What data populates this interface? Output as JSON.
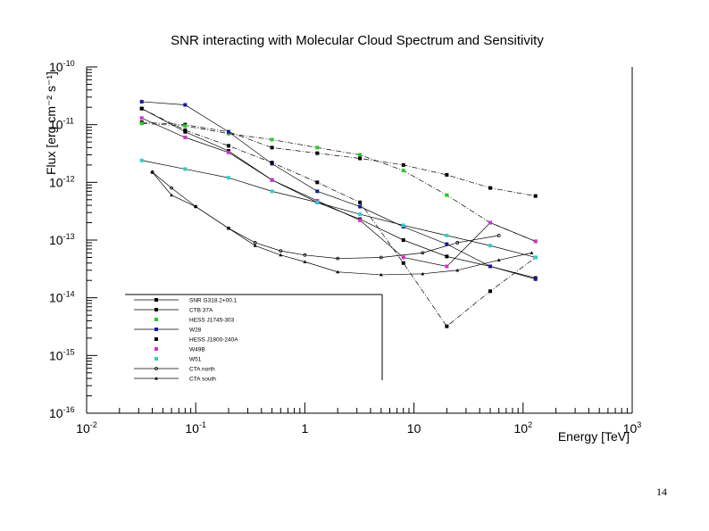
{
  "page_number": "14",
  "chart_data": {
    "type": "line",
    "title": "SNR interacting with Molecular Cloud Spectrum and Sensitivity",
    "xlabel": "Energy [TeV]",
    "ylabel": "Flux [erg cm⁻² s⁻¹]",
    "x_scale": "log",
    "y_scale": "log",
    "xlim": [
      0.01,
      1000
    ],
    "ylim": [
      1e-16,
      1e-10
    ],
    "x_ticks": [
      {
        "value": 0.01,
        "base": "10",
        "exp": "-2"
      },
      {
        "value": 0.1,
        "base": "10",
        "exp": "-1"
      },
      {
        "value": 1,
        "base": "1",
        "exp": ""
      },
      {
        "value": 10,
        "base": "10",
        "exp": ""
      },
      {
        "value": 100,
        "base": "10",
        "exp": "2"
      },
      {
        "value": 1000,
        "base": "10",
        "exp": "3"
      }
    ],
    "y_ticks": [
      {
        "value": 1e-10,
        "base": "10",
        "exp": "-10"
      },
      {
        "value": 1e-11,
        "base": "10",
        "exp": "-11"
      },
      {
        "value": 1e-12,
        "base": "10",
        "exp": "-12"
      },
      {
        "value": 1e-13,
        "base": "10",
        "exp": "-13"
      },
      {
        "value": 1e-14,
        "base": "10",
        "exp": "-14"
      },
      {
        "value": 1e-15,
        "base": "10",
        "exp": "-15"
      },
      {
        "value": 1e-16,
        "base": "10",
        "exp": "-16"
      }
    ],
    "grid": false,
    "legend_position": "bottom-left",
    "series": [
      {
        "name": "SNR G318.2+00.1",
        "color": "#000000",
        "marker": "square",
        "line": "dashdot",
        "x": [
          0.032,
          0.08,
          0.2,
          0.5,
          1.3,
          3.2,
          8,
          20,
          50,
          130
        ],
        "y": [
          1.1e-11,
          1e-11,
          7.5e-12,
          4e-12,
          3.2e-12,
          2.6e-12,
          2e-12,
          1.35e-12,
          8e-13,
          5.8e-13
        ]
      },
      {
        "name": "CTB 37A",
        "color": "#000000",
        "marker": "square",
        "line": "solid",
        "x": [
          0.032,
          0.08,
          0.2,
          0.5,
          1.3,
          3.2,
          8,
          20,
          50,
          130
        ],
        "y": [
          1.9e-11,
          7.5e-12,
          3.5e-12,
          1.1e-12,
          4.5e-13,
          2.3e-13,
          1e-13,
          5.2e-14,
          3.5e-14,
          2.2e-14
        ]
      },
      {
        "name": "HESS J1745-303",
        "color": "#22cc22",
        "marker": "square",
        "line": "dashdot",
        "x": [
          0.032,
          0.08,
          0.2,
          0.5,
          1.3,
          3.2,
          8,
          20,
          50,
          130
        ],
        "y": [
          1.05e-11,
          9.5e-12,
          7e-12,
          5.5e-12,
          4e-12,
          3e-12,
          1.6e-12,
          6e-13,
          2e-13,
          9.5e-14
        ]
      },
      {
        "name": "W28",
        "color": "#1a1a99",
        "marker": "square",
        "line": "solid",
        "x": [
          0.032,
          0.08,
          0.2,
          0.5,
          1.3,
          3.2,
          8,
          20,
          50,
          130
        ],
        "y": [
          2.5e-11,
          2.2e-11,
          7.5e-12,
          2.1e-12,
          7e-13,
          3.8e-13,
          1.7e-13,
          8.5e-14,
          3.5e-14,
          2.1e-14
        ]
      },
      {
        "name": "HESS J1800-240A",
        "color": "#000000",
        "marker": "square",
        "line": "dashdot",
        "x": [
          0.032,
          0.08,
          0.2,
          0.5,
          1.3,
          3.2,
          8,
          20,
          50,
          130
        ],
        "y": [
          1.9e-11,
          8e-12,
          4.3e-12,
          2.2e-12,
          1e-12,
          4.5e-13,
          4e-14,
          3.2e-15,
          1.3e-14,
          5e-14
        ]
      },
      {
        "name": "W49B",
        "color": "#cc33cc",
        "marker": "square",
        "line": "solid",
        "x": [
          0.032,
          0.08,
          0.2,
          0.5,
          1.3,
          3.2,
          8,
          20,
          50,
          130
        ],
        "y": [
          1.3e-11,
          6e-12,
          3.3e-12,
          1.1e-12,
          4.8e-13,
          2.2e-13,
          5e-14,
          3.5e-14,
          2e-13,
          9.5e-14
        ]
      },
      {
        "name": "W51",
        "color": "#33cccc",
        "marker": "square",
        "line": "solid",
        "x": [
          0.032,
          0.08,
          0.2,
          0.5,
          1.3,
          3.2,
          8,
          20,
          50,
          130
        ],
        "y": [
          2.4e-12,
          1.7e-12,
          1.2e-12,
          7e-13,
          4.5e-13,
          2.8e-13,
          1.8e-13,
          1.2e-13,
          8e-14,
          5e-14
        ]
      },
      {
        "name": "CTA north",
        "color": "#000000",
        "marker": "circle",
        "line": "solid",
        "x": [
          0.04,
          0.06,
          0.1,
          0.2,
          0.35,
          0.6,
          1,
          2,
          5,
          12,
          25,
          60
        ],
        "y": [
          1.5e-12,
          8e-13,
          3.8e-13,
          1.6e-13,
          9e-14,
          6.5e-14,
          5.5e-14,
          4.8e-14,
          5e-14,
          6e-14,
          9e-14,
          1.2e-13
        ]
      },
      {
        "name": "CTA south",
        "color": "#000000",
        "marker": "triangle",
        "line": "solid",
        "x": [
          0.04,
          0.06,
          0.1,
          0.2,
          0.35,
          0.6,
          1,
          2,
          5,
          12,
          25,
          60,
          120
        ],
        "y": [
          1.5e-12,
          6e-13,
          3.8e-13,
          1.6e-13,
          8e-14,
          5.5e-14,
          4.2e-14,
          2.8e-14,
          2.5e-14,
          2.6e-14,
          3e-14,
          4.5e-14,
          6e-14
        ]
      }
    ]
  }
}
